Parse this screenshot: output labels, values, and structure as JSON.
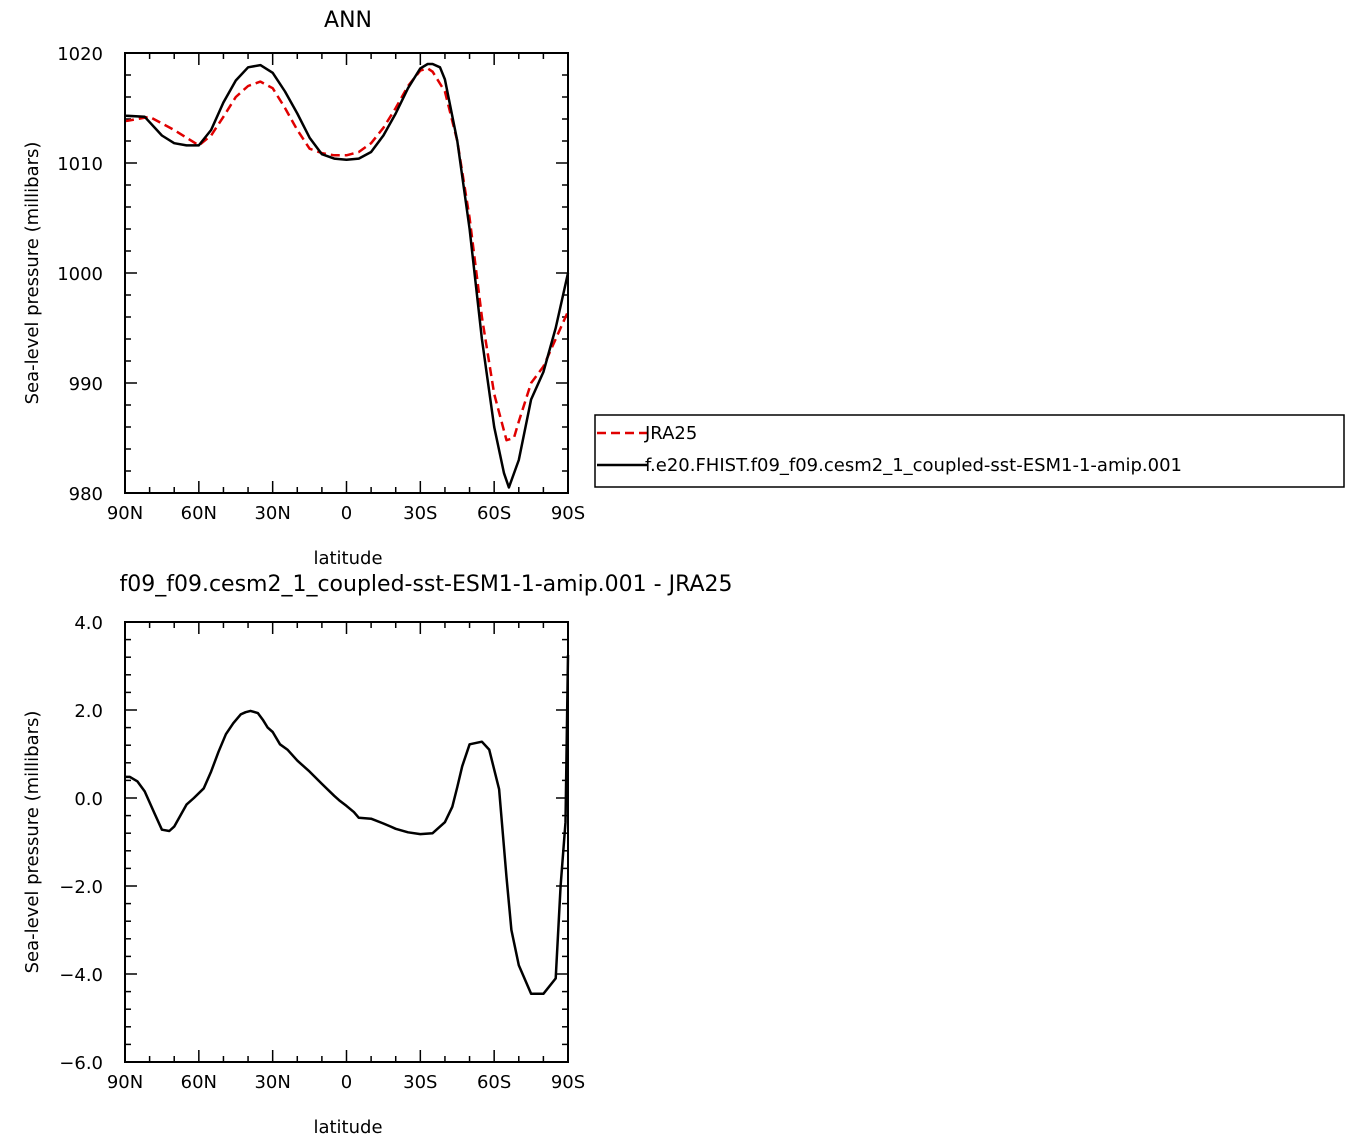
{
  "chart_data": [
    {
      "type": "line",
      "title": "ANN",
      "xlabel": "latitude",
      "ylabel": "Sea-level pressure (millibars)",
      "xlim": [
        90,
        -90
      ],
      "ylim": [
        980,
        1020
      ],
      "x_ticks": [
        90,
        60,
        30,
        0,
        -30,
        -60,
        -90
      ],
      "x_tick_labels": [
        "90N",
        "60N",
        "30N",
        "0",
        "30S",
        "60S",
        "90S"
      ],
      "y_ticks": [
        980,
        990,
        1000,
        1010,
        1020
      ],
      "y_tick_labels": [
        "980",
        "990",
        "1000",
        "1010",
        "1020"
      ],
      "legend_position": "right, outside plot",
      "series": [
        {
          "name": "JRA25",
          "color": "#e00000",
          "dash": "dashed",
          "x": [
            90,
            80,
            70,
            60,
            55,
            50,
            45,
            40,
            35,
            30,
            25,
            20,
            15,
            10,
            5,
            0,
            -5,
            -10,
            -15,
            -20,
            -25,
            -30,
            -33,
            -35,
            -40,
            -45,
            -50,
            -55,
            -60,
            -65,
            -68,
            -70,
            -75,
            -80,
            -85,
            -90
          ],
          "y": [
            1013.8,
            1014.2,
            1013.0,
            1011.6,
            1012.5,
            1014.2,
            1016.0,
            1017.0,
            1017.4,
            1016.8,
            1015.0,
            1013.0,
            1011.3,
            1010.9,
            1010.7,
            1010.7,
            1011.0,
            1011.8,
            1013.2,
            1015.0,
            1017.0,
            1018.4,
            1018.6,
            1018.3,
            1016.5,
            1012.0,
            1005.0,
            996.0,
            989.0,
            984.8,
            985.0,
            986.5,
            990.0,
            991.5,
            994.0,
            996.5
          ]
        },
        {
          "name": "f.e20.FHIST.f09_f09.cesm2_1_coupled-sst-ESM1-1-amip.001",
          "color": "#000000",
          "dash": "solid",
          "x": [
            90,
            82,
            75,
            70,
            65,
            60,
            55,
            50,
            45,
            40,
            35,
            30,
            25,
            20,
            15,
            10,
            5,
            0,
            -5,
            -10,
            -15,
            -20,
            -25,
            -30,
            -33,
            -35,
            -38,
            -40,
            -45,
            -50,
            -55,
            -60,
            -64,
            -66,
            -70,
            -75,
            -80,
            -85,
            -90
          ],
          "y": [
            1014.3,
            1014.2,
            1012.5,
            1011.8,
            1011.6,
            1011.6,
            1013.0,
            1015.5,
            1017.5,
            1018.7,
            1018.9,
            1018.2,
            1016.5,
            1014.5,
            1012.3,
            1010.8,
            1010.4,
            1010.3,
            1010.4,
            1011.0,
            1012.5,
            1014.5,
            1016.8,
            1018.6,
            1019.0,
            1019.0,
            1018.7,
            1017.6,
            1012.0,
            1004.0,
            994.0,
            986.0,
            981.8,
            980.5,
            983.0,
            988.5,
            991.0,
            995.0,
            1000.0
          ]
        }
      ]
    },
    {
      "type": "line",
      "title": "f09_f09.cesm2_1_coupled-sst-ESM1-1-amip.001 - JRA25",
      "xlabel": "latitude",
      "ylabel": "Sea-level pressure (millibars)",
      "xlim": [
        90,
        -90
      ],
      "ylim": [
        -6,
        4
      ],
      "x_ticks": [
        90,
        60,
        30,
        0,
        -30,
        -60,
        -90
      ],
      "x_tick_labels": [
        "90N",
        "60N",
        "30N",
        "0",
        "30S",
        "60S",
        "90S"
      ],
      "y_ticks": [
        -6,
        -4,
        -2,
        0,
        2,
        4
      ],
      "y_tick_labels": [
        "−6.0",
        "−4.0",
        "−2.0",
        "0.0",
        "2.0",
        "4.0"
      ],
      "series": [
        {
          "color": "#000000",
          "dash": "solid",
          "x": [
            90,
            88,
            85,
            82,
            78,
            75,
            72,
            70,
            67,
            65,
            62,
            58,
            55,
            52,
            49,
            46,
            43,
            41,
            39,
            36,
            34,
            32,
            30,
            27,
            24,
            20,
            15,
            10,
            5,
            3,
            0,
            -3,
            -5,
            -10,
            -15,
            -18,
            -20,
            -25,
            -30,
            -35,
            -40,
            -43,
            -45,
            -47,
            -50,
            -55,
            -58,
            -62,
            -65,
            -67,
            -70,
            -75,
            -80,
            -85,
            -87,
            -89,
            -90
          ],
          "y": [
            0.48,
            0.48,
            0.38,
            0.15,
            -0.35,
            -0.72,
            -0.75,
            -0.65,
            -0.35,
            -0.15,
            0.0,
            0.22,
            0.6,
            1.05,
            1.45,
            1.7,
            1.9,
            1.95,
            1.98,
            1.93,
            1.78,
            1.6,
            1.5,
            1.22,
            1.1,
            0.85,
            0.6,
            0.32,
            0.05,
            -0.05,
            -0.18,
            -0.32,
            -0.45,
            -0.47,
            -0.58,
            -0.65,
            -0.7,
            -0.78,
            -0.82,
            -0.8,
            -0.55,
            -0.2,
            0.25,
            0.72,
            1.22,
            1.28,
            1.1,
            0.2,
            -1.8,
            -3.0,
            -3.8,
            -4.45,
            -4.45,
            -4.1,
            -2.0,
            -0.55,
            3.25
          ]
        }
      ]
    }
  ]
}
